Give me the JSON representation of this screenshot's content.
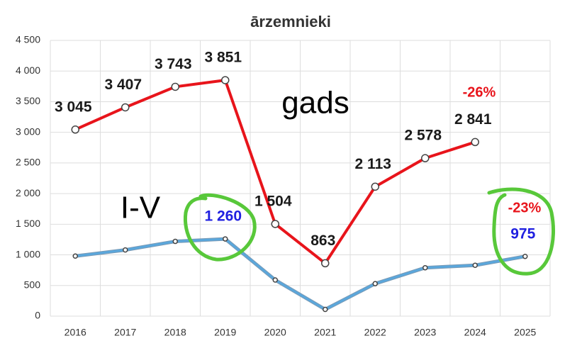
{
  "chart_data": {
    "type": "line",
    "title": "ārzemnieki",
    "categories": [
      "2016",
      "2017",
      "2018",
      "2019",
      "2020",
      "2021",
      "2022",
      "2023",
      "2024",
      "2025"
    ],
    "series": [
      {
        "name": "gads",
        "color": "#e8141b",
        "values": [
          3045,
          3407,
          3743,
          3851,
          1504,
          863,
          2113,
          2578,
          2841,
          null
        ],
        "value_labels": [
          "3 045",
          "3 407",
          "3 743",
          "3 851",
          "1 504",
          "863",
          "2 113",
          "2 578",
          "2 841",
          null
        ],
        "label_color": "#1a1a1a"
      },
      {
        "name": "I-V",
        "color": "#5aa7dc",
        "values": [
          980,
          1080,
          1220,
          1260,
          590,
          110,
          530,
          790,
          830,
          975
        ],
        "value_labels": [
          null,
          null,
          null,
          "1 260",
          null,
          null,
          null,
          null,
          null,
          "975"
        ],
        "label_color": "#2020e0"
      }
    ],
    "annotations": [
      "gads",
      "I-V",
      "-26%",
      "-23%"
    ],
    "ylim": [
      0,
      4500
    ],
    "yticks": [
      0,
      500,
      {
        "value": 1000,
        "label": "1 000"
      },
      {
        "value": 1500,
        "label": "1 500"
      },
      {
        "value": 2000,
        "label": "2 000"
      },
      {
        "value": 2500,
        "label": "2 500"
      },
      {
        "value": 3000,
        "label": "3 000"
      },
      {
        "value": 3500,
        "label": "3 500"
      },
      {
        "value": 4000,
        "label": "4 000"
      },
      {
        "value": 4500,
        "label": "4 500"
      }
    ],
    "grid": true
  }
}
